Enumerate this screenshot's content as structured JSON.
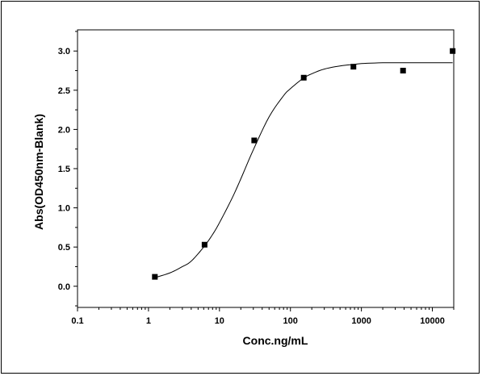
{
  "chart_data": {
    "type": "scatter",
    "title": "",
    "xlabel": "Conc.ng/mL",
    "ylabel": "Abs(OD450nm-Blank)",
    "xscale": "log",
    "xlim": [
      0.1,
      20000
    ],
    "ylim": [
      -0.27,
      3.27
    ],
    "xticks": [
      0.1,
      1,
      10,
      100,
      1000,
      10000
    ],
    "xtick_labels": [
      "0.1",
      "1",
      "10",
      "100",
      "1000",
      "10000"
    ],
    "yticks": [
      0.0,
      0.5,
      1.0,
      1.5,
      2.0,
      2.5,
      3.0
    ],
    "ytick_labels": [
      "0.0",
      "0.5",
      "1.0",
      "1.5",
      "2.0",
      "2.5",
      "3.0"
    ],
    "grid": false,
    "series": [
      {
        "kind": "points",
        "marker": "square",
        "x": [
          1.23,
          6.17,
          30.9,
          154,
          772,
          3860,
          19300
        ],
        "y": [
          0.12,
          0.53,
          1.86,
          2.66,
          2.8,
          2.75,
          3.0
        ]
      },
      {
        "kind": "fit-curve",
        "x": [
          1.23,
          2,
          3,
          4,
          6,
          8,
          10,
          15,
          20,
          30,
          50,
          80,
          100,
          150,
          200,
          300,
          500,
          800,
          1000,
          2000,
          5000,
          10000,
          19300
        ],
        "y": [
          0.11,
          0.17,
          0.25,
          0.32,
          0.5,
          0.66,
          0.81,
          1.12,
          1.37,
          1.74,
          2.16,
          2.43,
          2.52,
          2.65,
          2.71,
          2.77,
          2.81,
          2.83,
          2.84,
          2.85,
          2.85,
          2.85,
          2.85
        ]
      }
    ],
    "colors": {
      "axis": "#000000",
      "markers": "#000000",
      "curve": "#000000"
    }
  }
}
